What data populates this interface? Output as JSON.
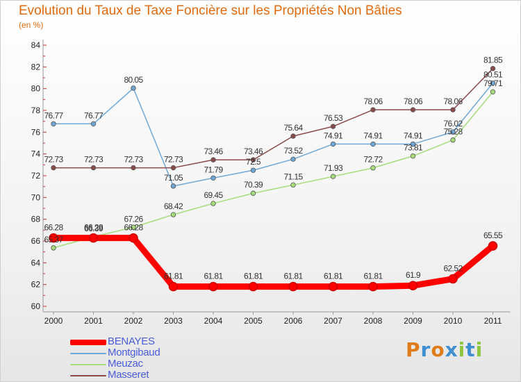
{
  "title": "Evolution du Taux de Taxe Foncière sur les Propriétés Non Bâties",
  "unit_label": "(en %)",
  "logo": {
    "text": "Proxiti",
    "letters": [
      {
        "ch": "P",
        "color": "#e07b1a"
      },
      {
        "ch": "r",
        "color": "#3f8fd0"
      },
      {
        "ch": "o",
        "color": "#e07b1a"
      },
      {
        "ch": "x",
        "color": "#3f8fd0"
      },
      {
        "ch": "i",
        "color": "#8cc63f"
      },
      {
        "ch": "t",
        "color": "#3f8fd0"
      },
      {
        "ch": "i",
        "color": "#8cc63f"
      }
    ]
  },
  "chart_data": {
    "type": "line",
    "x": [
      "2000",
      "2001",
      "2002",
      "2003",
      "2004",
      "2005",
      "2006",
      "2007",
      "2008",
      "2009",
      "2010",
      "2011"
    ],
    "ylim": [
      60,
      84
    ],
    "yticks": [
      60,
      62,
      64,
      66,
      68,
      70,
      72,
      74,
      76,
      78,
      80,
      82,
      84
    ],
    "grid": false,
    "legend_position": "bottom-left",
    "series": [
      {
        "name": "BENAYES",
        "color": "#ff0000",
        "emphasis": true,
        "values": [
          66.28,
          66.28,
          66.28,
          61.81,
          61.81,
          61.81,
          61.81,
          61.81,
          61.81,
          61.9,
          62.52,
          65.55
        ],
        "labels": [
          "66.28",
          "66.28",
          "66.28",
          "61.81",
          "61.81",
          "61.81",
          "61.81",
          "61.81",
          "61.81",
          "61.9",
          "62.52",
          "65.55"
        ]
      },
      {
        "name": "Montgibaud",
        "color": "#6fa8d6",
        "values": [
          76.77,
          76.77,
          80.05,
          71.05,
          71.79,
          72.5,
          73.52,
          74.91,
          74.91,
          74.91,
          76.02,
          80.51
        ],
        "labels": [
          "76.77",
          "76.77",
          "80.05",
          "71.05",
          "71.79",
          "72.5",
          "73.52",
          "74.91",
          "74.91",
          "74.91",
          "76.02",
          "80.51"
        ]
      },
      {
        "name": "Meuzac",
        "color": "#a6dc7a",
        "values": [
          65.37,
          66.39,
          67.26,
          68.42,
          69.45,
          70.39,
          71.15,
          71.93,
          72.72,
          73.81,
          75.28,
          79.71
        ],
        "labels": [
          "65.37",
          "66.39",
          "67.26",
          "68.42",
          "69.45",
          "70.39",
          "71.15",
          "71.93",
          "72.72",
          "73.81",
          "75.28",
          "79.71"
        ]
      },
      {
        "name": "Masseret",
        "color": "#8b4a4a",
        "values": [
          72.73,
          72.73,
          72.73,
          72.73,
          73.46,
          73.46,
          75.64,
          76.53,
          78.06,
          78.06,
          78.06,
          81.85
        ],
        "labels": [
          "72.73",
          "72.73",
          "72.73",
          "72.73",
          "73.46",
          "73.46",
          "75.64",
          "76.53",
          "78.06",
          "78.06",
          "78.06",
          "81.85"
        ]
      }
    ]
  }
}
